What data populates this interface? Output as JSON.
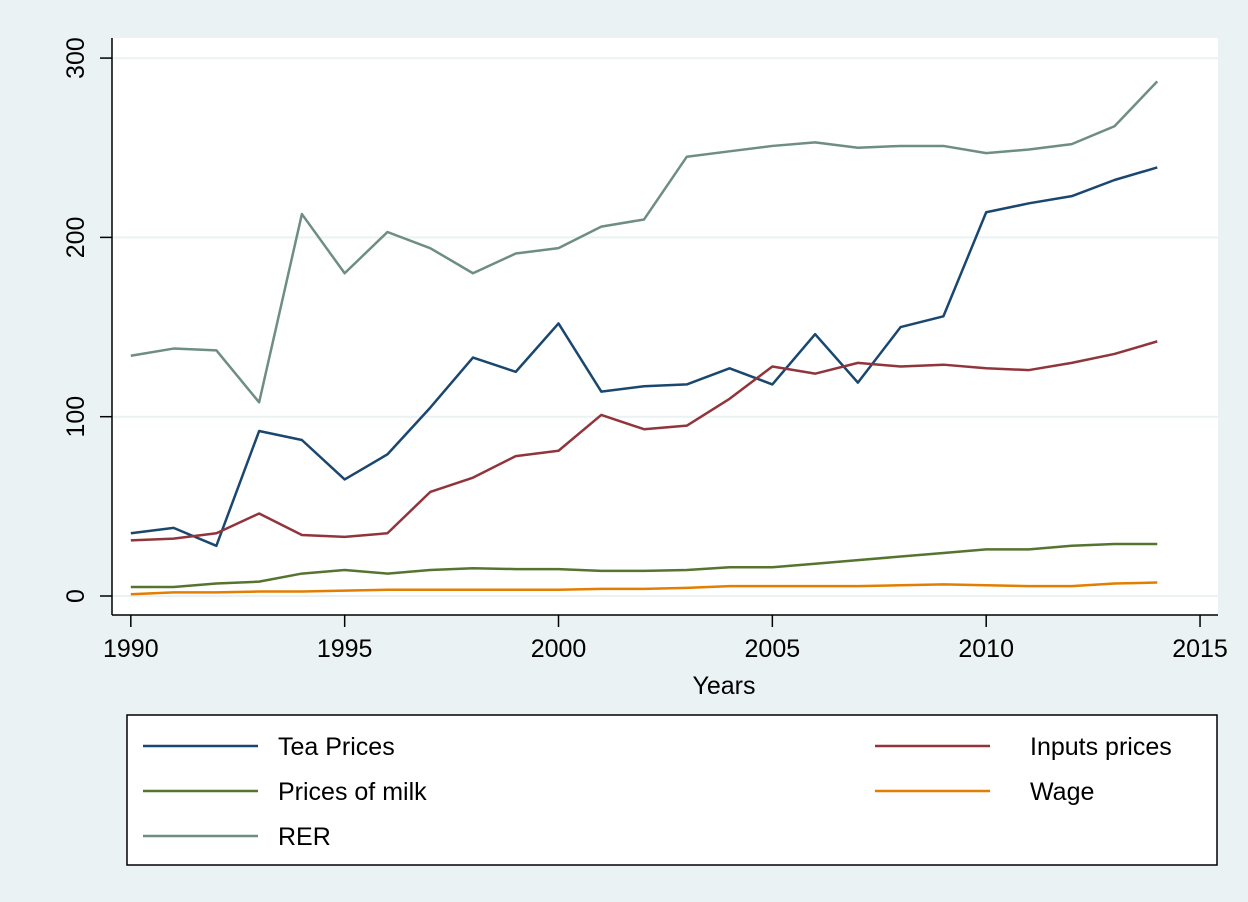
{
  "chart_data": {
    "type": "line",
    "x": [
      1990,
      1991,
      1992,
      1993,
      1994,
      1995,
      1996,
      1997,
      1998,
      1999,
      2000,
      2001,
      2002,
      2003,
      2004,
      2005,
      2006,
      2007,
      2008,
      2009,
      2010,
      2011,
      2012,
      2013,
      2014
    ],
    "series": [
      {
        "name": "Tea Prices",
        "color": "#1a476f",
        "values": [
          35,
          38,
          28,
          92,
          87,
          65,
          79,
          105,
          133,
          125,
          152,
          114,
          117,
          118,
          127,
          118,
          146,
          119,
          150,
          156,
          214,
          219,
          223,
          232,
          239
        ]
      },
      {
        "name": "Inputs prices",
        "color": "#90353b",
        "values": [
          31,
          32,
          35,
          46,
          34,
          33,
          35,
          58,
          66,
          78,
          81,
          101,
          93,
          95,
          110,
          128,
          124,
          130,
          128,
          129,
          127,
          126,
          130,
          135,
          142
        ]
      },
      {
        "name": "Prices of milk",
        "color": "#55752f",
        "values": [
          5,
          5,
          7,
          8,
          12.5,
          14.5,
          12.5,
          14.5,
          15.5,
          15,
          15,
          14,
          14,
          14.5,
          16,
          16,
          18,
          20,
          22,
          24,
          26,
          26,
          28,
          29,
          29
        ]
      },
      {
        "name": "Wage",
        "color": "#e37e00",
        "values": [
          1,
          2,
          2,
          2.5,
          2.5,
          3,
          3.5,
          3.5,
          3.5,
          3.5,
          3.5,
          4,
          4,
          4.5,
          5.5,
          5.5,
          5.5,
          5.5,
          6,
          6.5,
          6,
          5.5,
          5.5,
          7,
          7.5
        ]
      },
      {
        "name": "RER",
        "color": "#6e8e84",
        "values": [
          134,
          138,
          137,
          108,
          213,
          180,
          203,
          194,
          180,
          191,
          194,
          206,
          210,
          245,
          248,
          251,
          253,
          250,
          251,
          251,
          247,
          249,
          252,
          262,
          287
        ]
      }
    ],
    "x_label": "Years",
    "xlim": [
      1989.56,
      2015.42
    ],
    "xticks": [
      1990,
      1995,
      2000,
      2005,
      2010,
      2015
    ],
    "ylim": [
      -10.6,
      311.2
    ],
    "yticks": [
      0,
      100,
      200,
      300
    ],
    "grid": true,
    "legend": "bottom"
  }
}
